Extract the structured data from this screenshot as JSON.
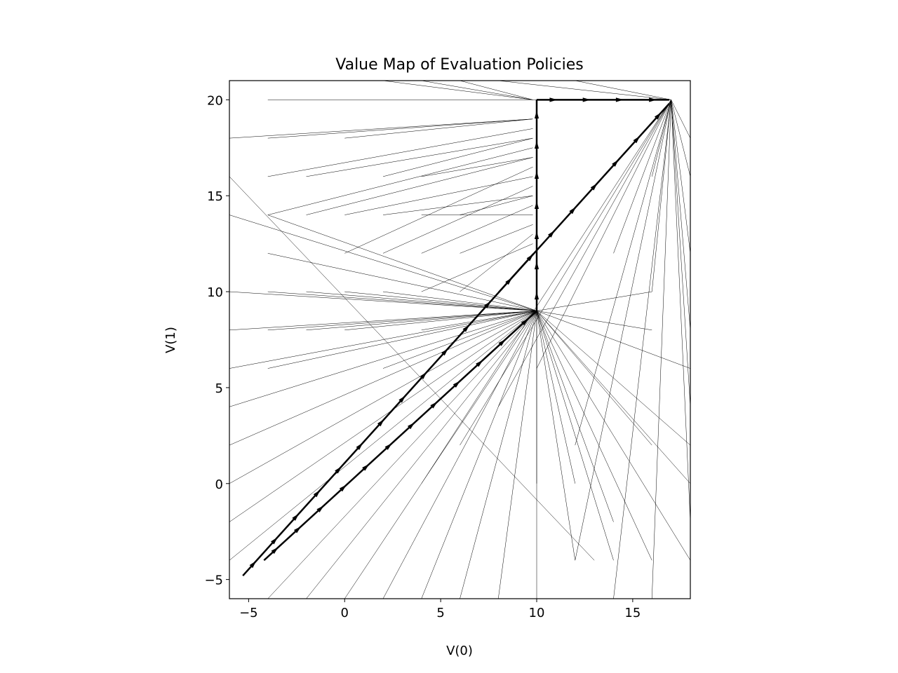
{
  "chart_data": {
    "type": "quiver",
    "title": "Value Map of Evaluation Policies",
    "xlabel": "V(0)",
    "ylabel": "V(1)",
    "xlim": [
      -6,
      18
    ],
    "ylim": [
      -6,
      21
    ],
    "xticks": [
      -5,
      0,
      5,
      10,
      15
    ],
    "yticks": [
      -5,
      0,
      5,
      10,
      15,
      20
    ],
    "xtick_labels": [
      "−5",
      "0",
      "5",
      "10",
      "15"
    ],
    "ytick_labels": [
      "−5",
      "0",
      "5",
      "10",
      "15",
      "20"
    ],
    "grid": false,
    "line_color": "#000000",
    "main_paths": [
      [
        [
          -5.3,
          -4.8
        ],
        [
          16.9,
          19.8
        ]
      ],
      [
        [
          -4.2,
          -4.0
        ],
        [
          10.0,
          9.0
        ]
      ],
      [
        [
          10.0,
          9.0
        ],
        [
          10.0,
          20.0
        ]
      ],
      [
        [
          10.0,
          20.0
        ],
        [
          16.9,
          20.0
        ]
      ]
    ],
    "thin_segments": [
      [
        -6,
        10,
        10,
        9
      ],
      [
        -6,
        8,
        10,
        9
      ],
      [
        -6,
        6,
        10,
        9
      ],
      [
        -6,
        4,
        10,
        9
      ],
      [
        -6,
        2,
        10,
        9
      ],
      [
        -6,
        0,
        10,
        9
      ],
      [
        -6,
        -2,
        10,
        9
      ],
      [
        -6,
        -4,
        10,
        9
      ],
      [
        -4,
        12,
        10,
        9
      ],
      [
        -4,
        10,
        10,
        9
      ],
      [
        -4,
        8,
        10,
        9
      ],
      [
        -4,
        6,
        10,
        9
      ],
      [
        -4,
        -6,
        10,
        9
      ],
      [
        -2,
        10,
        10,
        9
      ],
      [
        -2,
        8,
        10,
        9
      ],
      [
        -2,
        -6,
        10,
        9
      ],
      [
        0,
        10,
        10,
        9
      ],
      [
        0,
        8,
        10,
        9
      ],
      [
        0,
        -6,
        10,
        9
      ],
      [
        2,
        10,
        10,
        9
      ],
      [
        2,
        6,
        10,
        9
      ],
      [
        2,
        -6,
        10,
        9
      ],
      [
        4,
        8,
        10,
        9
      ],
      [
        4,
        -6,
        10,
        9
      ],
      [
        6,
        -6,
        10,
        9
      ],
      [
        8,
        -6,
        10,
        9
      ],
      [
        10,
        0,
        10,
        9
      ],
      [
        12,
        -4,
        10,
        9
      ],
      [
        14,
        -4,
        10,
        9
      ],
      [
        16,
        -4,
        10,
        9
      ],
      [
        18,
        -4,
        10,
        9
      ],
      [
        18,
        0,
        10,
        9
      ],
      [
        18,
        2,
        10,
        9
      ],
      [
        16,
        8,
        10,
        9
      ],
      [
        16,
        10,
        10,
        9
      ],
      [
        18,
        6,
        10,
        9
      ],
      [
        16,
        2,
        10,
        9
      ],
      [
        14,
        -2,
        10,
        9
      ],
      [
        12,
        0,
        10,
        9
      ],
      [
        -4,
        14,
        10,
        9
      ],
      [
        -6,
        14,
        10,
        9
      ],
      [
        -6,
        16,
        13,
        -4
      ],
      [
        12,
        -4,
        17,
        20
      ],
      [
        14,
        -6,
        17,
        20
      ],
      [
        16,
        -6,
        17,
        20
      ],
      [
        18,
        -2,
        17,
        20
      ],
      [
        18,
        4,
        17,
        20
      ],
      [
        18,
        8,
        17,
        20
      ],
      [
        18,
        12,
        17,
        20
      ],
      [
        18,
        16,
        17,
        20
      ],
      [
        18,
        18,
        17,
        20
      ],
      [
        16,
        16,
        17,
        20
      ],
      [
        14,
        12,
        17,
        20
      ],
      [
        10,
        6,
        17,
        20
      ],
      [
        8,
        4,
        17,
        20
      ],
      [
        6,
        2,
        17,
        20
      ],
      [
        4,
        0,
        17,
        20
      ],
      [
        12,
        2,
        17,
        20
      ],
      [
        16,
        10,
        17,
        20
      ],
      [
        8,
        21,
        17,
        20
      ],
      [
        12,
        21,
        17,
        20
      ],
      [
        -4,
        20,
        17,
        20
      ],
      [
        -6,
        18,
        9.8,
        19
      ],
      [
        -4,
        18,
        9.8,
        19
      ],
      [
        -4,
        16,
        9.8,
        18.5
      ],
      [
        -2,
        16,
        9.8,
        18
      ],
      [
        -4,
        14,
        9.8,
        17.5
      ],
      [
        -2,
        14,
        9.8,
        17
      ],
      [
        0,
        12,
        9.8,
        16.5
      ],
      [
        0,
        14,
        9.8,
        16
      ],
      [
        2,
        12,
        9.8,
        15.5
      ],
      [
        2,
        14,
        9.8,
        15
      ],
      [
        4,
        12,
        9.8,
        14.5
      ],
      [
        4,
        14,
        9.8,
        14
      ],
      [
        6,
        12,
        9.8,
        13.5
      ],
      [
        6,
        10,
        9.8,
        13
      ],
      [
        2,
        16,
        9.8,
        18
      ],
      [
        0,
        18,
        9.8,
        19
      ],
      [
        4,
        16,
        9.8,
        17
      ],
      [
        6,
        14,
        9.8,
        15
      ],
      [
        8,
        10,
        9.8,
        12
      ],
      [
        4,
        10,
        9.8,
        12.5
      ],
      [
        2,
        21,
        9.8,
        20
      ],
      [
        4,
        21,
        9.8,
        20
      ],
      [
        6,
        21,
        9.8,
        20
      ],
      [
        10,
        -6,
        10,
        9
      ]
    ]
  }
}
